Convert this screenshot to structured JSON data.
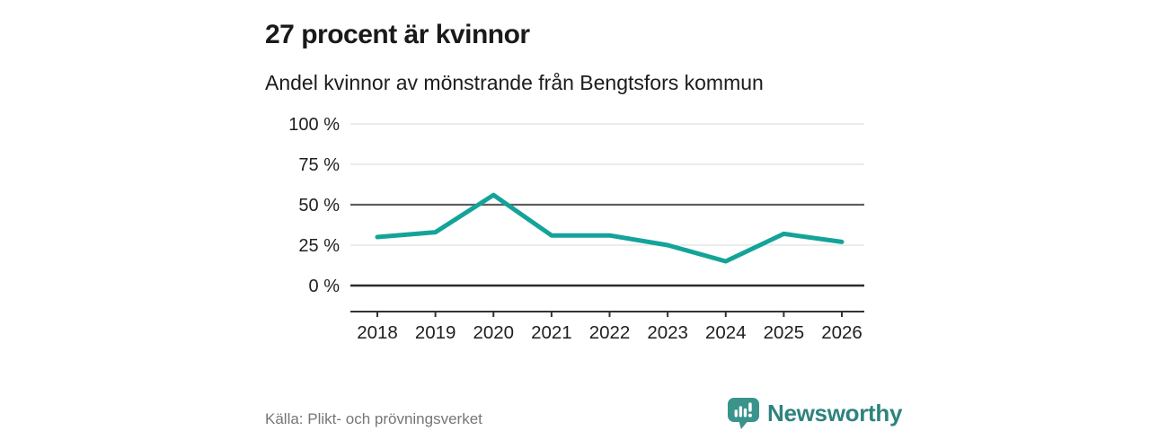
{
  "header": {
    "title": "27 procent är kvinnor",
    "subtitle": "Andel kvinnor av mönstrande från Bengtsfors kommun"
  },
  "chart_data": {
    "type": "line",
    "title": "27 procent är kvinnor",
    "subtitle": "Andel kvinnor av mönstrande från Bengtsfors kommun",
    "categories": [
      "2018",
      "2019",
      "2020",
      "2021",
      "2022",
      "2023",
      "2024",
      "2025",
      "2026"
    ],
    "series": [
      {
        "name": "Andel kvinnor av mönstrande",
        "values": [
          30,
          33,
          56,
          31,
          31,
          25,
          15,
          32,
          27
        ]
      }
    ],
    "unit": "%",
    "ylim": [
      0,
      100
    ],
    "y_ticks": [
      {
        "value": 100,
        "label": "100 %",
        "emphasis": "light"
      },
      {
        "value": 75,
        "label": "75 %",
        "emphasis": "light"
      },
      {
        "value": 50,
        "label": "50 %",
        "emphasis": "mid"
      },
      {
        "value": 25,
        "label": "25 %",
        "emphasis": "light"
      },
      {
        "value": 0,
        "label": "0 %",
        "emphasis": "strong"
      }
    ],
    "grid": true,
    "legend": "none",
    "line_color": "#14a399"
  },
  "footer": {
    "source": "Källa: Plikt- och prövningsverket",
    "brand": "Newsworthy"
  },
  "colors": {
    "line": "#14a399",
    "grid_light": "#e1e1e1",
    "grid_mid": "#5f5f5f",
    "grid_strong": "#2b2b2b",
    "axis": "#333333",
    "tick_text": "#1f1f1f",
    "title_text": "#1a1a1a",
    "source_text": "#767676",
    "brand_icon": "#3a948c",
    "brand_text": "#2e837e",
    "background": "#ffffff"
  }
}
